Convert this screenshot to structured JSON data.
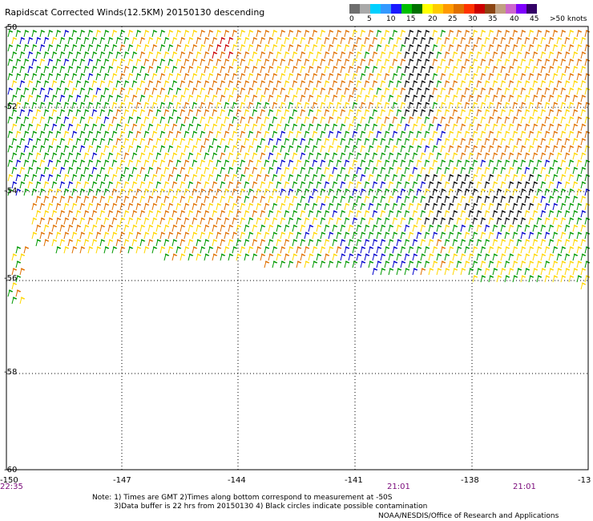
{
  "title": "Rapidscat Corrected Winds(12.5KM) 20150130 descending",
  "scale": {
    "labels": [
      "0",
      "5",
      "10",
      "15",
      "20",
      "25",
      "30",
      "35",
      "40",
      "45",
      ">50 knots"
    ],
    "colors": [
      "#6e6e6e",
      "#a9a9a9",
      "#00d0ff",
      "#3399ff",
      "#1a1aff",
      "#00c000",
      "#007000",
      "#ffff00",
      "#ffcc00",
      "#ff9900",
      "#e07000",
      "#ff3300",
      "#cc0000",
      "#8b4513",
      "#c0a080",
      "#cc66cc",
      "#7f00ff",
      "#330066"
    ]
  },
  "map": {
    "lat_labels": [
      "-50",
      "-52",
      "-54",
      "-56",
      "-58",
      "-60"
    ],
    "lon_labels": [
      "-150",
      "-147",
      "-144",
      "-141",
      "-138",
      "-13"
    ],
    "time_labels": [
      "22:35",
      "21:01",
      "21:01"
    ]
  },
  "notes": {
    "line1": "Note: 1) Times are GMT 2)Times along bottom correspond to measurement at -50S",
    "line2": "3)Data buffer is 22 hrs from 20150130 4) Black circles indicate possible contamination"
  },
  "credit": "NOAA/NESDIS/Office of Research and Applications",
  "colors": {
    "calm": "#000000",
    "light": "#0000cc",
    "moderate": "#009900",
    "fresh": "#ffd700",
    "strong": "#e07000",
    "gale": "#cc0000"
  }
}
